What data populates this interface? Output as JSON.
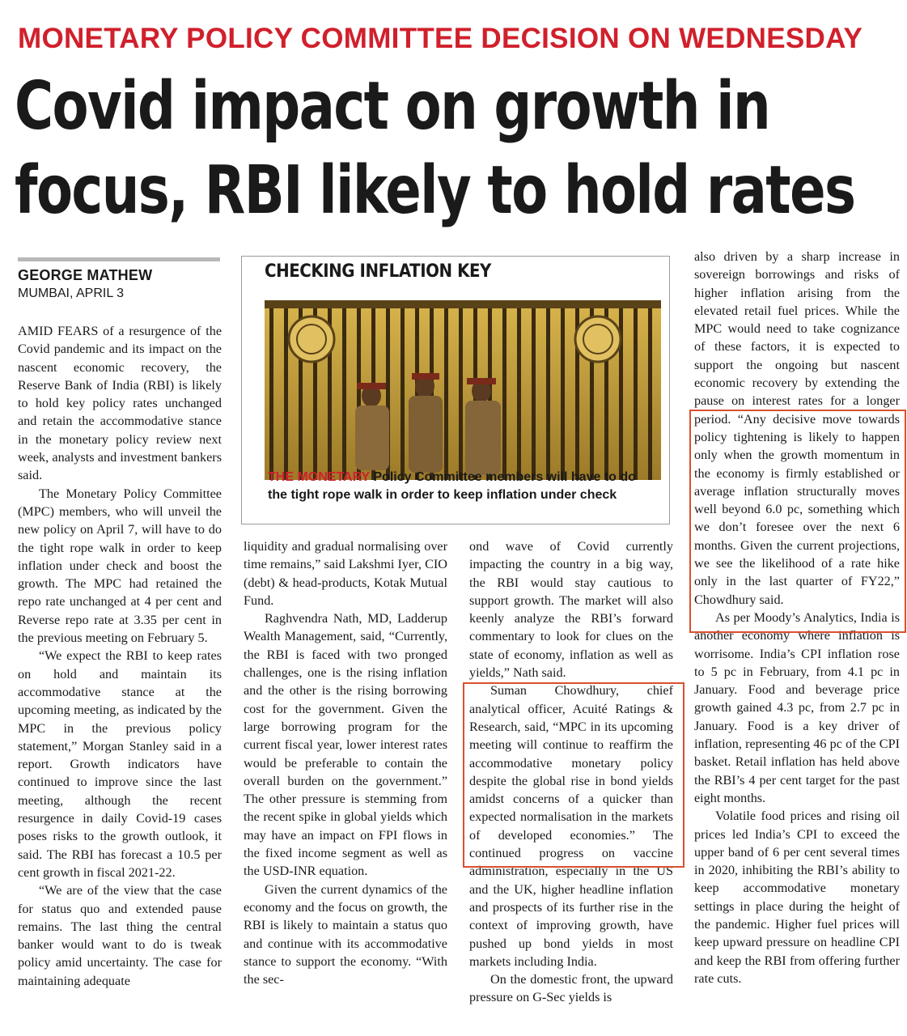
{
  "kicker": "MONETARY POLICY COMMITTEE DECISION ON WEDNESDAY",
  "headline": {
    "line1": "Covid impact on growth in",
    "line2": "focus, RBI likely to hold rates"
  },
  "byline": {
    "author": "GEORGE MATHEW",
    "dateline": "MUMBAI, APRIL 3"
  },
  "infobox": {
    "title": "CHECKING INFLATION KEY",
    "caption_lead": "THE MONETARY",
    "caption_rest": " Policy Committee members will have to do the tight rope walk in order to keep inflation under check"
  },
  "column1": {
    "p1_lead": "Amid fears",
    "p1_rest": " of a resurgence of the Covid pandemic and its impact on the nascent economic recovery, the Reserve Bank of India (RBI) is likely to hold key policy rates unchanged and retain the accommodative stance in the monetary policy review next week, analysts and investment bankers said.",
    "p2": "The Monetary Policy Committee (MPC) members, who will unveil the new policy on April 7, will have to do the tight rope walk in order to keep inflation under check and boost the growth. The MPC had retained the repo rate unchanged at 4 per cent and Reverse repo rate at 3.35 per cent in the previous meeting on February 5.",
    "p3": "“We expect the RBI to keep rates on hold and maintain its accommodative stance at the upcoming meeting, as indicated by the MPC in the previous policy statement,” Morgan Stanley said in a report. Growth indicators have continued to improve since the last meeting, although the recent resurgence in daily Covid-19 cases poses risks to the growth outlook, it said. The RBI has forecast a 10.5 per cent growth in fiscal 2021-22.",
    "p4": "“We are of the view that the case for status quo and extended pause remains. The last thing the central banker would want to do is tweak policy amid uncertainty. The case for maintaining adequate"
  },
  "column2": {
    "p1": "liquidity and gradual normalising over time remains,” said Lakshmi Iyer, CIO (debt) & head-products, Kotak Mutual Fund.",
    "p2": "Raghvendra Nath, MD, Ladderup Wealth Management, said, “Currently, the RBI is faced with two pronged challenges, one is the rising inflation and the other is the rising borrowing cost for the government. Given the large borrowing program for the current fiscal year, lower interest rates would be preferable to contain the overall burden on the government.” The other pressure is stemming from the recent spike in global yields which may have an impact on FPI flows in the fixed income segment as well as the USD-INR equation.",
    "p3": "Given the current dynamics of the economy and the focus on growth, the RBI is likely to maintain a status quo and continue with its accommodative stance to support the economy. “With the sec-"
  },
  "column3": {
    "p1": "ond wave of Covid currently impacting the country in a big way, the RBI would stay cautious to support growth. The market will also keenly analyze the RBI’s forward commentary to look for clues on the state of economy, inflation as well as yields,” Nath said.",
    "p2": "Suman Chowdhury, chief analytical officer, Acuité Ratings & Research, said, “MPC in its upcoming meeting will continue to reaffirm the accommodative monetary policy despite the global rise in bond yields amidst concerns of a quicker than expected normalisation in the markets of developed economies.” The continued progress on vaccine administration, especially in the US and the UK, higher headline inflation and prospects of its further rise in the context of improving growth, have pushed up bond yields in most markets including India.",
    "p3": "On the domestic front, the upward pressure on G-Sec yields is"
  },
  "column4": {
    "p1": "also driven by a sharp increase in sovereign borrowings and risks of higher inflation arising from the elevated retail fuel prices. While the MPC would need to take cognizance of these factors, it is expected to support the ongoing but nascent economic recovery by extending the pause on interest rates for a longer period. “Any decisive move towards policy tightening is likely to happen only when the growth momentum in the economy is firmly established or average inflation structurally moves well beyond 6.0 pc, something which we don’t foresee over the next 6 months. Given the current projections, we see the likelihood of a rate hike only in the last quarter of FY22,” Chowdhury said.",
    "p2": "As per Moody’s Analytics, India is another economy where inflation is worrisome. India’s CPI inflation rose to 5 pc in February, from 4.1 pc in January. Food and beverage price growth gained 4.3 pc, from 2.7 pc in January. Food is a key driver of inflation, representing 46 pc of the CPI basket. Retail inflation has held above the RBI’s 4 per cent target for the past eight months.",
    "p3": "Volatile food prices and rising oil prices led India’s CPI to exceed the upper band of 6 per cent several times in 2020, inhibiting the RBI’s ability to keep accommodative monetary settings in place during the height of the pandemic. Higher fuel prices will keep upward pressure on headline CPI and keep the RBI from offering further rate cuts."
  },
  "colors": {
    "kicker": "#d0202c",
    "highlight_box": "#d9502e",
    "photo_background": "#c9a640"
  }
}
